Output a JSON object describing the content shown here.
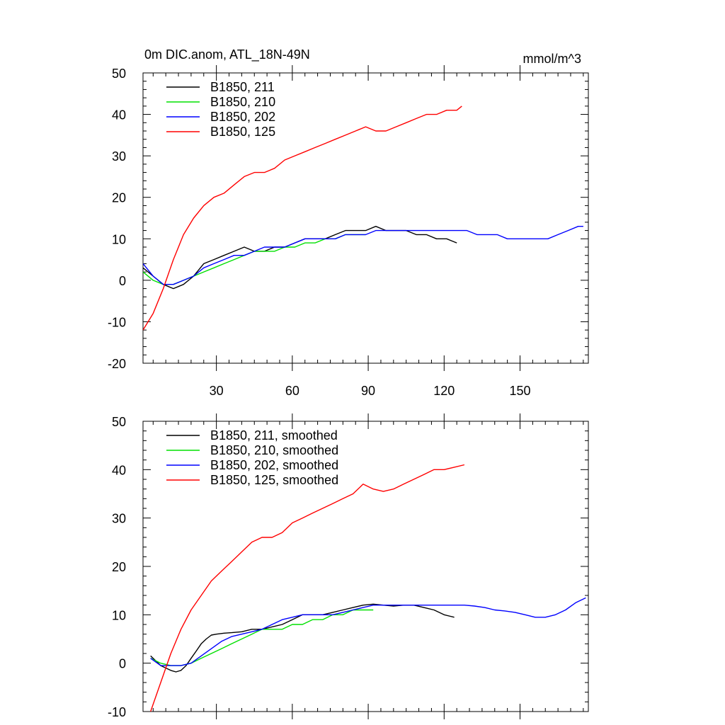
{
  "chart_data": [
    {
      "type": "line",
      "title": "0m DIC.anom, ATL_18N-49N",
      "units_label": "mmol/m^3",
      "xlim": [
        1,
        177
      ],
      "ylim": [
        -20,
        50
      ],
      "xticks": [
        30,
        60,
        90,
        120,
        150
      ],
      "yticks": [
        -20,
        -10,
        0,
        10,
        20,
        30,
        40,
        50
      ],
      "legend_position": "top-left",
      "grid": false,
      "series": [
        {
          "name": "B1850, 211",
          "color": "#000000",
          "x": [
            1,
            5,
            9,
            13,
            17,
            21,
            25,
            29,
            33,
            37,
            41,
            45,
            49,
            53,
            57,
            61,
            65,
            69,
            73,
            77,
            81,
            85,
            89,
            93,
            97,
            101,
            105,
            109,
            113,
            117,
            121,
            125
          ],
          "y": [
            3,
            1,
            -1,
            -2,
            -1,
            1,
            4,
            5,
            6,
            7,
            8,
            7,
            7,
            8,
            8,
            9,
            10,
            10,
            10,
            11,
            12,
            12,
            12,
            13,
            12,
            12,
            12,
            11,
            11,
            10,
            10,
            9
          ]
        },
        {
          "name": "B1850, 210",
          "color": "#00e000",
          "x": [
            1,
            5,
            9,
            13,
            17,
            21,
            25,
            29,
            33,
            37,
            41,
            45,
            49,
            53,
            57,
            61,
            65,
            69,
            73,
            77,
            81,
            85,
            89
          ],
          "y": [
            2,
            0,
            -1,
            -1,
            0,
            1,
            2,
            3,
            4,
            5,
            6,
            7,
            7,
            7,
            8,
            8,
            9,
            9,
            10,
            10,
            11,
            11,
            11
          ]
        },
        {
          "name": "B1850, 202",
          "color": "#0000ff",
          "x": [
            1,
            5,
            9,
            13,
            17,
            21,
            25,
            29,
            33,
            37,
            41,
            45,
            49,
            53,
            57,
            61,
            65,
            69,
            73,
            77,
            81,
            85,
            89,
            93,
            97,
            101,
            105,
            109,
            113,
            117,
            121,
            125,
            129,
            133,
            137,
            141,
            145,
            149,
            153,
            157,
            161,
            165,
            169,
            173,
            175
          ],
          "y": [
            4,
            1,
            -1,
            -1,
            0,
            1,
            3,
            4,
            5,
            6,
            6,
            7,
            8,
            8,
            8,
            9,
            10,
            10,
            10,
            10,
            11,
            11,
            11,
            12,
            12,
            12,
            12,
            12,
            12,
            12,
            12,
            12,
            12,
            11,
            11,
            11,
            10,
            10,
            10,
            10,
            10,
            11,
            12,
            13,
            13
          ]
        },
        {
          "name": "B1850, 125",
          "color": "#ff0000",
          "x": [
            1,
            5,
            9,
            13,
            17,
            21,
            25,
            29,
            33,
            37,
            41,
            45,
            49,
            53,
            57,
            61,
            65,
            69,
            73,
            77,
            81,
            85,
            89,
            93,
            97,
            101,
            105,
            109,
            113,
            117,
            121,
            125,
            127
          ],
          "y": [
            -12,
            -8,
            -2,
            5,
            11,
            15,
            18,
            20,
            21,
            23,
            25,
            26,
            26,
            27,
            29,
            30,
            31,
            32,
            33,
            34,
            35,
            36,
            37,
            36,
            36,
            37,
            38,
            39,
            40,
            40,
            41,
            41,
            42
          ]
        }
      ]
    },
    {
      "type": "line",
      "title": "",
      "units_label": "",
      "xlim": [
        1,
        177
      ],
      "ylim": [
        -10,
        50
      ],
      "xticks": [
        30,
        60,
        90,
        120,
        150
      ],
      "yticks": [
        -10,
        0,
        10,
        20,
        30,
        40,
        50
      ],
      "legend_position": "top-left",
      "grid": false,
      "series": [
        {
          "name": "B1850, 211, smoothed",
          "color": "#000000",
          "x": [
            4,
            6,
            8,
            10,
            12,
            14,
            16,
            18,
            20,
            22,
            24,
            26,
            28,
            30,
            33,
            36,
            40,
            44,
            48,
            52,
            56,
            60,
            64,
            68,
            72,
            76,
            80,
            84,
            88,
            92,
            96,
            100,
            104,
            108,
            112,
            116,
            120,
            124
          ],
          "y": [
            1.5,
            0.5,
            -0.5,
            -1,
            -1.5,
            -1.8,
            -1.5,
            -0.5,
            1,
            2.5,
            4,
            5,
            5.8,
            6,
            6.2,
            6.3,
            6.5,
            7,
            7,
            7.5,
            8,
            9,
            10,
            10,
            10,
            10.5,
            11,
            11.5,
            12,
            12.2,
            12,
            11.8,
            12,
            12,
            11.5,
            11,
            10,
            9.5
          ]
        },
        {
          "name": "B1850, 210, smoothed",
          "color": "#00e000",
          "x": [
            4,
            8,
            12,
            16,
            20,
            24,
            28,
            32,
            36,
            40,
            44,
            48,
            52,
            56,
            60,
            64,
            68,
            72,
            76,
            80,
            84,
            88,
            92
          ],
          "y": [
            1,
            0,
            -0.5,
            -0.5,
            0,
            1,
            2,
            3,
            4,
            5,
            6,
            7,
            7,
            7,
            8,
            8,
            9,
            9,
            10,
            10,
            11,
            11,
            11
          ]
        },
        {
          "name": "B1850, 202, smoothed",
          "color": "#0000ff",
          "x": [
            4,
            8,
            12,
            16,
            20,
            24,
            28,
            32,
            36,
            40,
            44,
            48,
            52,
            56,
            60,
            64,
            68,
            72,
            76,
            80,
            84,
            88,
            92,
            96,
            100,
            104,
            108,
            112,
            116,
            120,
            124,
            128,
            132,
            136,
            140,
            144,
            148,
            152,
            156,
            160,
            164,
            168,
            172,
            176
          ],
          "y": [
            1,
            -0.5,
            -0.5,
            -0.5,
            0,
            1.5,
            3,
            4.5,
            5.5,
            6,
            6.5,
            7,
            8,
            9,
            9.5,
            10,
            10,
            10,
            10,
            10.5,
            11,
            11.5,
            12,
            12,
            12,
            12,
            12,
            12,
            12,
            12,
            12,
            12,
            11.8,
            11.5,
            11,
            10.8,
            10.5,
            10,
            9.5,
            9.5,
            10,
            11,
            12.5,
            13.5
          ]
        },
        {
          "name": "B1850, 125, smoothed",
          "color": "#ff0000",
          "x": [
            4,
            8,
            12,
            16,
            20,
            24,
            28,
            32,
            36,
            40,
            44,
            48,
            52,
            56,
            60,
            64,
            68,
            72,
            76,
            80,
            84,
            88,
            92,
            96,
            100,
            104,
            108,
            112,
            116,
            120,
            124,
            128
          ],
          "y": [
            -10,
            -4,
            2,
            7,
            11,
            14,
            17,
            19,
            21,
            23,
            25,
            26,
            26,
            27,
            29,
            30,
            31,
            32,
            33,
            34,
            35,
            37,
            36,
            35.5,
            36,
            37,
            38,
            39,
            40,
            40,
            40.5,
            41
          ]
        }
      ]
    }
  ]
}
